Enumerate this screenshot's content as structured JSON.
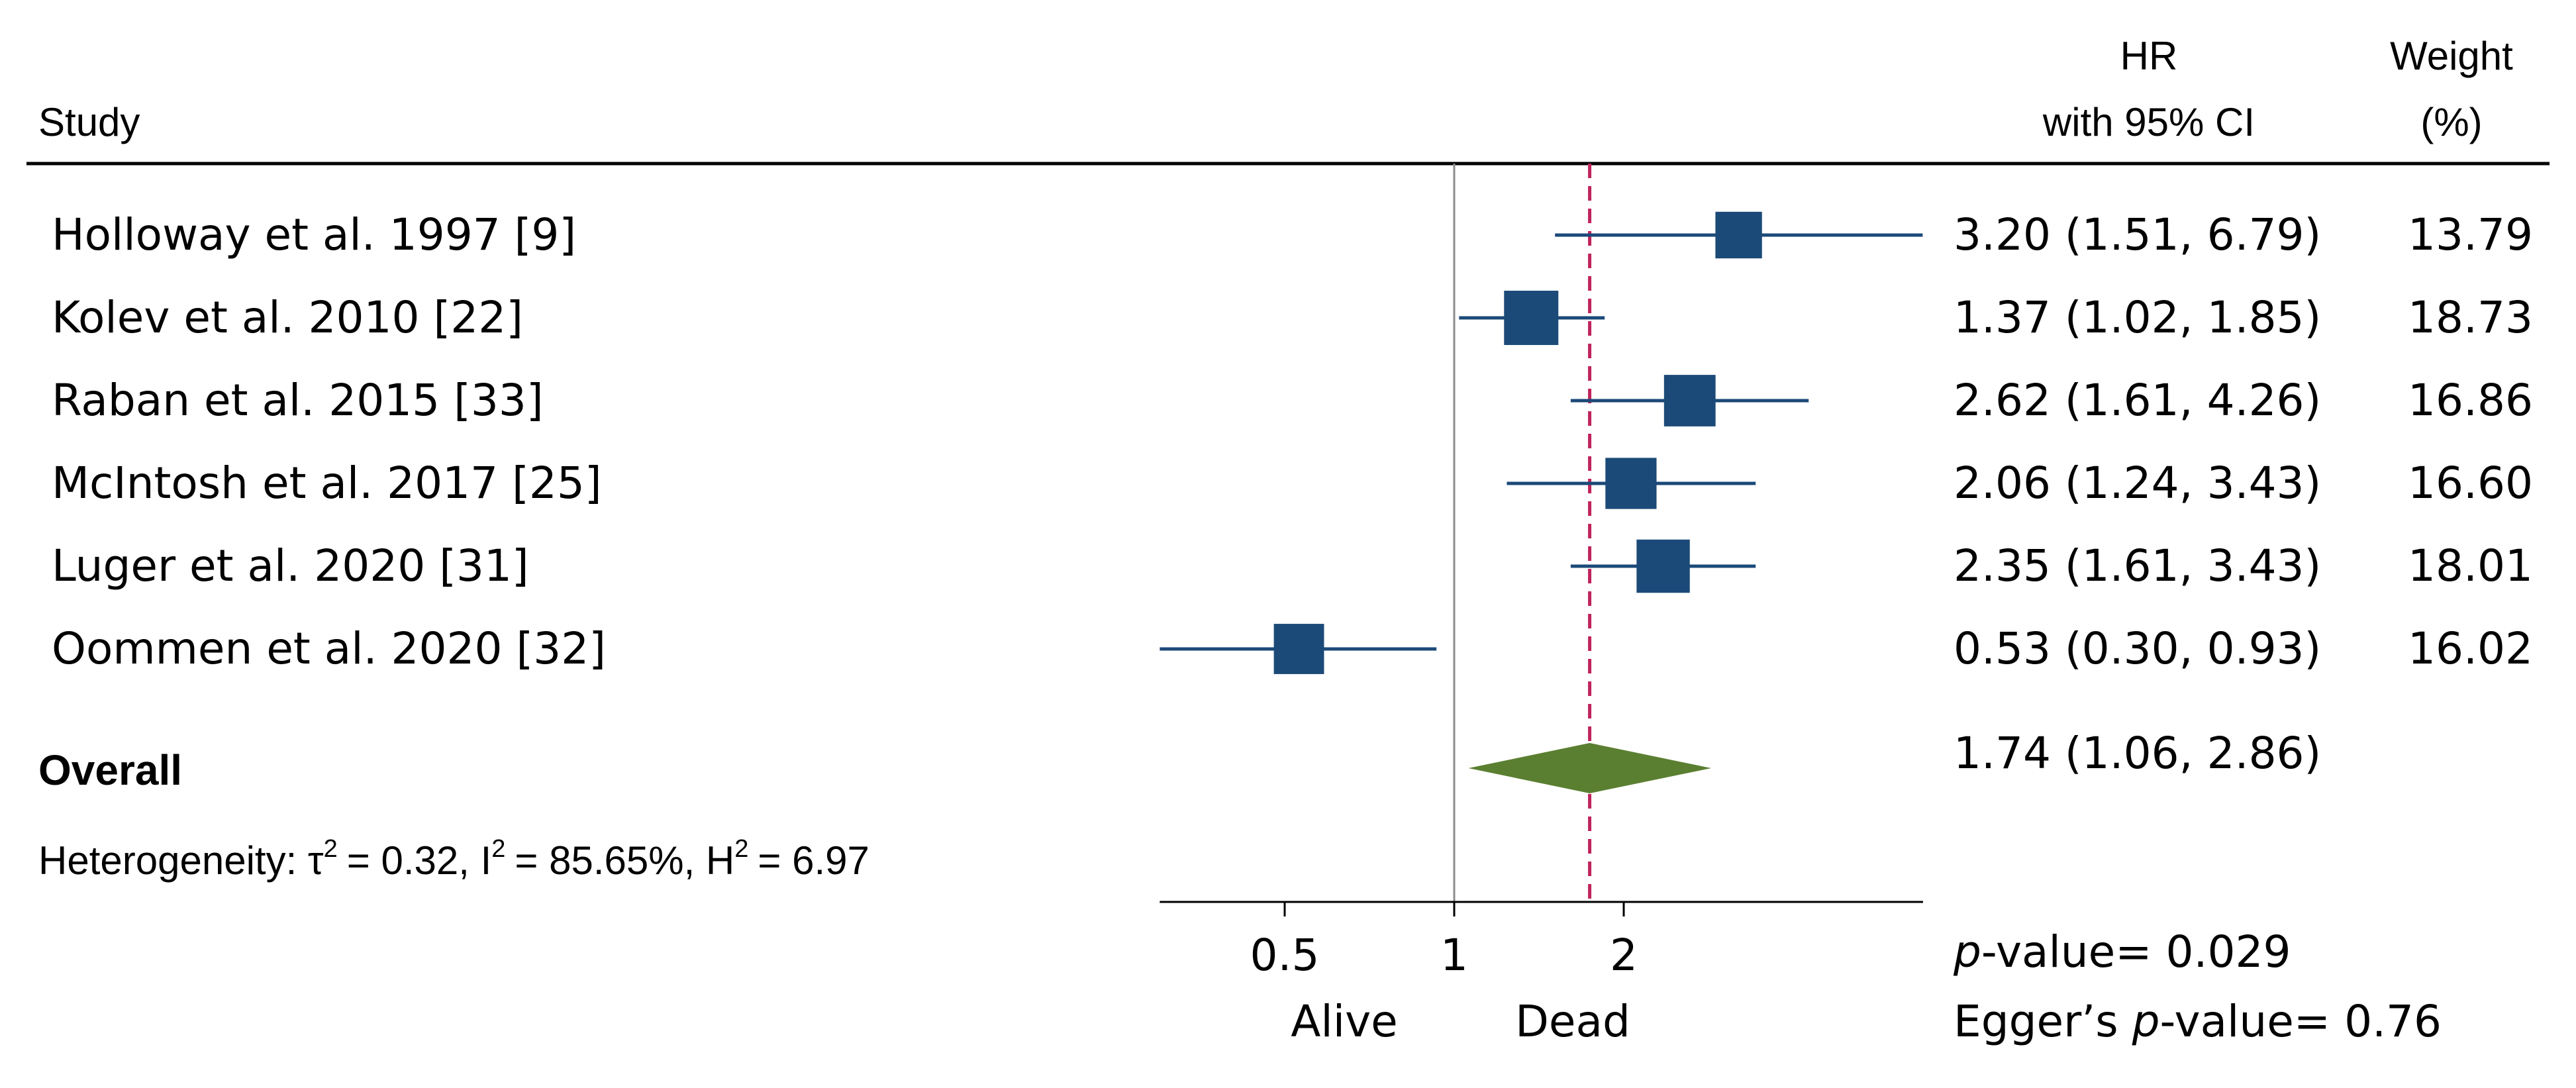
{
  "header": {
    "study": "Study",
    "hr_line1": "HR",
    "hr_line2": "with 95% CI",
    "weight_line1": "Weight",
    "weight_line2": "(%)"
  },
  "chart_data": {
    "type": "forest",
    "scale": "log",
    "xlim": [
      0.3,
      6.8
    ],
    "x_ticks": [
      0.5,
      1,
      2
    ],
    "x_tick_labels": [
      "0.5",
      "1",
      "2"
    ],
    "null_line": 1,
    "overall_line": 1.74,
    "studies": [
      {
        "label": "Holloway et al. 1997 [9]",
        "hr": 3.2,
        "lo": 1.51,
        "hi": 6.79,
        "ci_text": "3.20 (1.51, 6.79)",
        "weight": 13.79,
        "weight_text": "13.79"
      },
      {
        "label": "Kolev et al. 2010 [22]",
        "hr": 1.37,
        "lo": 1.02,
        "hi": 1.85,
        "ci_text": "1.37 (1.02, 1.85)",
        "weight": 18.73,
        "weight_text": "18.73"
      },
      {
        "label": "Raban et al. 2015 [33]",
        "hr": 2.62,
        "lo": 1.61,
        "hi": 4.26,
        "ci_text": "2.62 (1.61, 4.26)",
        "weight": 16.86,
        "weight_text": "16.86"
      },
      {
        "label": "McIntosh et al. 2017 [25]",
        "hr": 2.06,
        "lo": 1.24,
        "hi": 3.43,
        "ci_text": "2.06 (1.24, 3.43)",
        "weight": 16.6,
        "weight_text": "16.60"
      },
      {
        "label": "Luger et al. 2020 [31]",
        "hr": 2.35,
        "lo": 1.61,
        "hi": 3.43,
        "ci_text": "2.35 (1.61, 3.43)",
        "weight": 18.01,
        "weight_text": "18.01"
      },
      {
        "label": "Oommen et al. 2020 [32]",
        "hr": 0.53,
        "lo": 0.3,
        "hi": 0.93,
        "ci_text": "0.53 (0.30, 0.93)",
        "weight": 16.02,
        "weight_text": "16.02"
      }
    ],
    "overall": {
      "label": "Overall",
      "hr": 1.74,
      "lo": 1.06,
      "hi": 2.86,
      "ci_text": "1.74 (1.06, 2.86)"
    },
    "heterogeneity": {
      "prefix": "Heterogeneity: τ",
      "tau_sq": "= 0.32, I",
      "i_sq": "= 85.65%, H",
      "h_sq": "= 6.97",
      "sup": "2"
    },
    "xlabel_left": "Alive",
    "xlabel_right": "Dead",
    "pvalue_label": "p",
    "pvalue_text": "-value= 0.029",
    "egger_prefix": "Egger’s ",
    "egger_p": "p",
    "egger_text": "-value= 0.76",
    "colors": {
      "marker": "#1c4a78",
      "diamond": "#5b7f31",
      "overall_line": "#c0245c",
      "null_line": "#8c8c8c"
    }
  }
}
